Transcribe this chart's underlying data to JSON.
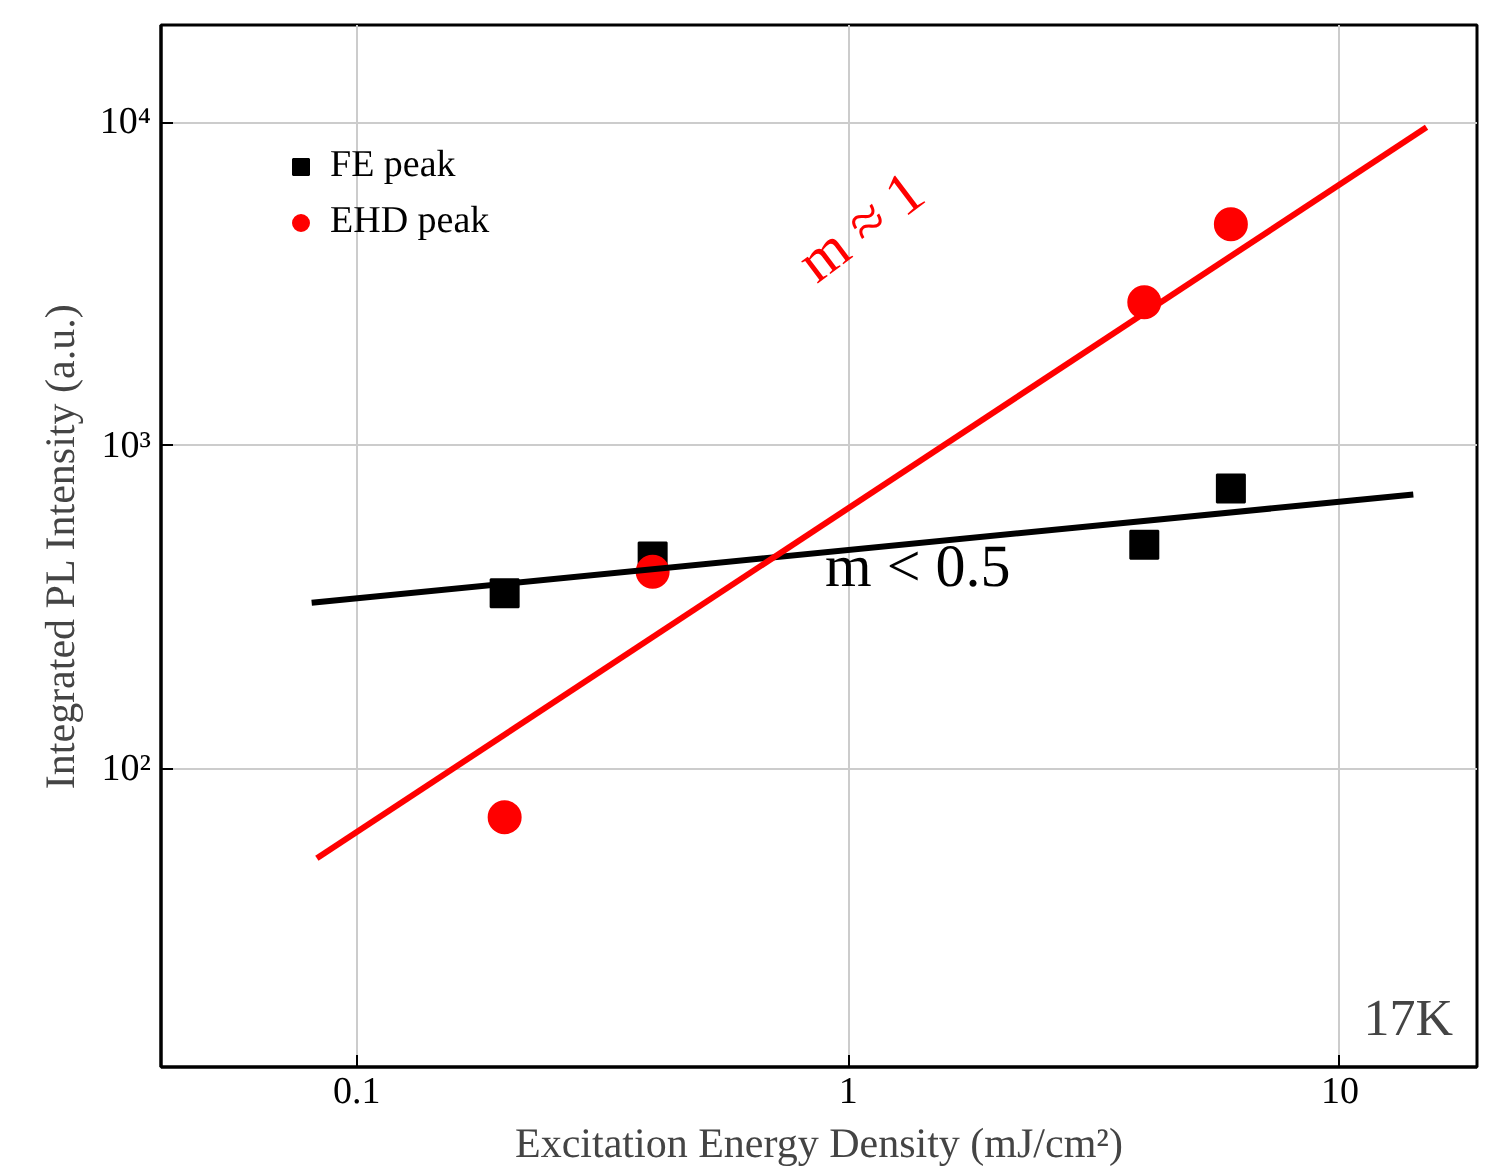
{
  "chart_data": {
    "type": "scatter",
    "xlabel": "Excitation Energy Density (mJ/cm²)",
    "ylabel": "Integrated PL Intensity (a.u.)",
    "log": "xy",
    "xlim": [
      0.04,
      19
    ],
    "ylim": [
      12,
      20000
    ],
    "xticks": [
      0.1,
      1,
      10
    ],
    "yticks": [
      {
        "value": 100,
        "label": "10²"
      },
      {
        "value": 1000,
        "label": "10³"
      },
      {
        "value": 10000,
        "label": "10⁴"
      }
    ],
    "grid": true,
    "legend": "top left",
    "series": [
      {
        "name": "FE peak",
        "marker": "square",
        "color": "#000000",
        "x": [
          0.2,
          0.4,
          4,
          6
        ],
        "values": [
          350,
          455,
          494,
          738
        ]
      },
      {
        "name": "EHD peak",
        "marker": "circle",
        "color": "#ff0000",
        "x": [
          0.2,
          0.4,
          4,
          6
        ],
        "values": [
          71,
          408,
          2780,
          4840
        ]
      },
      {
        "type": "line",
        "color": "#000000",
        "x": [
          0.081,
          14.1
        ],
        "values": [
          327,
          707
        ]
      },
      {
        "type": "line",
        "color": "#ff0000",
        "x": [
          0.083,
          15
        ],
        "values": [
          53,
          9660
        ]
      }
    ],
    "annotations": [
      "m ≈ 1",
      "m < 0.5",
      "17K"
    ]
  }
}
